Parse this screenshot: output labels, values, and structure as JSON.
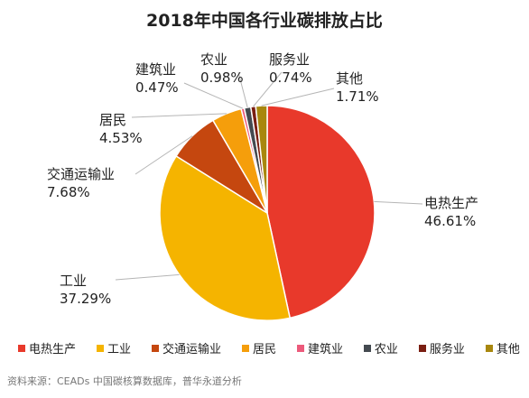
{
  "chart_data": {
    "type": "pie",
    "title": "2018年中国各行业碳排放占比",
    "slices": [
      {
        "label": "电热生产",
        "value": 46.61,
        "value_label": "46.61%",
        "color": "#e8392b"
      },
      {
        "label": "工业",
        "value": 37.29,
        "value_label": "37.29%",
        "color": "#f5b400"
      },
      {
        "label": "交通运输业",
        "value": 7.68,
        "value_label": "7.68%",
        "color": "#c5470f"
      },
      {
        "label": "居民",
        "value": 4.53,
        "value_label": "4.53%",
        "color": "#f59e0b"
      },
      {
        "label": "建筑业",
        "value": 0.47,
        "value_label": "0.47%",
        "color": "#ec5a7b"
      },
      {
        "label": "农业",
        "value": 0.98,
        "value_label": "0.98%",
        "color": "#444a50"
      },
      {
        "label": "服务业",
        "value": 0.74,
        "value_label": "0.74%",
        "color": "#7a1e12"
      },
      {
        "label": "其他",
        "value": 1.71,
        "value_label": "1.71%",
        "color": "#a8870e"
      }
    ],
    "legend_position": "bottom",
    "start_angle_deg": 0,
    "direction": "clockwise"
  },
  "source_note": "资料来源：CEADs 中国碳核算数据库，普华永道分析"
}
